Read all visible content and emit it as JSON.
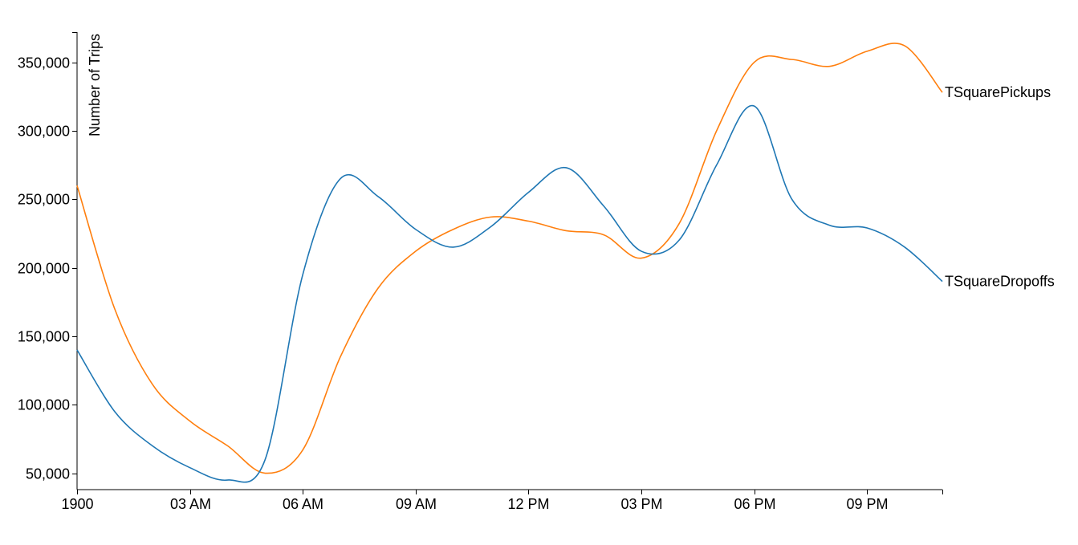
{
  "chart_data": {
    "type": "line",
    "title": "",
    "xlabel": "",
    "ylabel": "Number of Trips",
    "x_ticks": [
      "1900",
      "03 AM",
      "06 AM",
      "09 AM",
      "12 PM",
      "03 PM",
      "06 PM",
      "09 PM"
    ],
    "x_tick_hours": [
      0,
      3,
      6,
      9,
      12,
      15,
      18,
      21
    ],
    "xlim_hours": [
      0,
      23
    ],
    "y_ticks": [
      "50,000",
      "100,000",
      "150,000",
      "200,000",
      "250,000",
      "300,000",
      "350,000"
    ],
    "y_tick_values": [
      50000,
      100000,
      150000,
      200000,
      250000,
      300000,
      350000
    ],
    "ylim": [
      38000,
      372000
    ],
    "grid": false,
    "legend": "inline-at-line-end",
    "series": [
      {
        "name": "TSquarePickups",
        "color": "#ff7f0e",
        "hours": [
          0,
          1,
          2,
          3,
          4,
          5,
          6,
          7,
          8,
          9,
          10,
          11,
          12,
          13,
          14,
          15,
          16,
          17,
          18,
          19,
          20,
          21,
          22,
          23
        ],
        "values": [
          260000,
          170000,
          115000,
          88000,
          70000,
          50000,
          67000,
          135000,
          185000,
          212000,
          228000,
          237000,
          234000,
          227000,
          224000,
          207000,
          232000,
          300000,
          350000,
          352000,
          347000,
          358000,
          362000,
          328000
        ]
      },
      {
        "name": "TSquareDropoffs",
        "color": "#1f77b4",
        "hours": [
          0,
          1,
          2,
          3,
          4,
          5,
          6,
          7,
          8,
          9,
          10,
          11,
          12,
          13,
          14,
          15,
          16,
          17,
          18,
          19,
          20,
          21,
          22,
          23
        ],
        "values": [
          140000,
          95000,
          70000,
          54000,
          45000,
          60000,
          195000,
          265000,
          252000,
          228000,
          215000,
          230000,
          255000,
          273000,
          245000,
          212000,
          220000,
          275000,
          318000,
          250000,
          231000,
          229000,
          215000,
          190000
        ]
      }
    ]
  }
}
